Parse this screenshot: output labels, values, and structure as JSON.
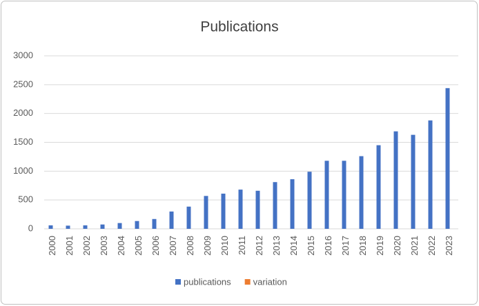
{
  "chart_data": {
    "type": "bar",
    "title": "Publications",
    "categories": [
      "2000",
      "2001",
      "2002",
      "2003",
      "2004",
      "2005",
      "2006",
      "2007",
      "2008",
      "2009",
      "2010",
      "2011",
      "2012",
      "2013",
      "2014",
      "2015",
      "2016",
      "2017",
      "2018",
      "2019",
      "2020",
      "2021",
      "2022",
      "2023"
    ],
    "series": [
      {
        "name": "publications",
        "color": "#4472c4",
        "values": [
          60,
          55,
          60,
          75,
          100,
          135,
          170,
          300,
          385,
          570,
          610,
          680,
          660,
          810,
          860,
          990,
          1180,
          1180,
          1260,
          1450,
          1690,
          1630,
          1880,
          2440
        ]
      },
      {
        "name": "variation",
        "color": "#ed7d31",
        "values": [
          null,
          null,
          null,
          null,
          null,
          null,
          null,
          null,
          null,
          null,
          null,
          null,
          null,
          null,
          null,
          null,
          null,
          null,
          null,
          null,
          null,
          null,
          null,
          null
        ]
      }
    ],
    "ylim": [
      0,
      3000
    ],
    "yticks": [
      0,
      500,
      1000,
      1500,
      2000,
      2500,
      3000
    ],
    "grid": true,
    "legend": "bottom"
  }
}
